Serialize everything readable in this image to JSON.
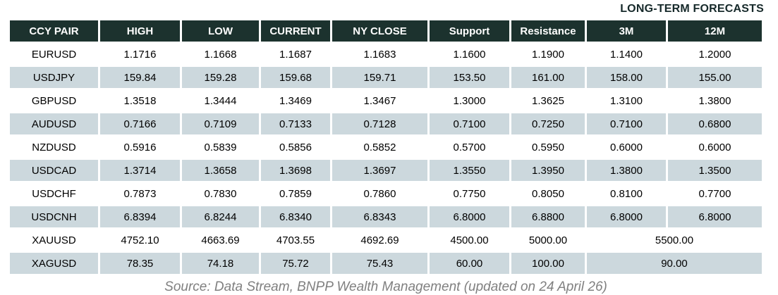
{
  "title": "LONG-TERM FORECASTS",
  "footer": "Source: Data Stream, BNPP Wealth Management (updated on 24 April 26)",
  "colors": {
    "header_bg": "#1c322e",
    "stripe_bg": "#ccd8dd",
    "title_text": "#16292a",
    "footer_text": "#808080"
  },
  "chart_data": {
    "type": "table",
    "title": "LONG-TERM FORECASTS",
    "columns": [
      "CCY PAIR",
      "HIGH",
      "LOW",
      "CURRENT",
      "NY CLOSE",
      "Support",
      "Resistance",
      "3M",
      "12M"
    ],
    "rows": [
      {
        "cells": [
          "EURUSD",
          "1.1716",
          "1.1668",
          "1.1687",
          "1.1683",
          "1.1600",
          "1.1900",
          "1.1400",
          "1.2000"
        ]
      },
      {
        "cells": [
          "USDJPY",
          "159.84",
          "159.28",
          "159.68",
          "159.71",
          "153.50",
          "161.00",
          "158.00",
          "155.00"
        ]
      },
      {
        "cells": [
          "GBPUSD",
          "1.3518",
          "1.3444",
          "1.3469",
          "1.3467",
          "1.3000",
          "1.3625",
          "1.3100",
          "1.3800"
        ]
      },
      {
        "cells": [
          "AUDUSD",
          "0.7166",
          "0.7109",
          "0.7133",
          "0.7128",
          "0.7100",
          "0.7250",
          "0.7100",
          "0.6800"
        ]
      },
      {
        "cells": [
          "NZDUSD",
          "0.5916",
          "0.5839",
          "0.5856",
          "0.5852",
          "0.5700",
          "0.5950",
          "0.6000",
          "0.6000"
        ]
      },
      {
        "cells": [
          "USDCAD",
          "1.3714",
          "1.3658",
          "1.3698",
          "1.3697",
          "1.3550",
          "1.3950",
          "1.3800",
          "1.3500"
        ]
      },
      {
        "cells": [
          "USDCHF",
          "0.7873",
          "0.7830",
          "0.7859",
          "0.7860",
          "0.7750",
          "0.8050",
          "0.8100",
          "0.7700"
        ]
      },
      {
        "cells": [
          "USDCNH",
          "6.8394",
          "6.8244",
          "6.8340",
          "6.8343",
          "6.8000",
          "6.8800",
          "6.8000",
          "6.8000"
        ]
      },
      {
        "cells": [
          "XAUUSD",
          "4752.10",
          "4663.69",
          "4703.55",
          "4692.69",
          "4500.00",
          "5000.00"
        ],
        "merged_forecast": "5500.00"
      },
      {
        "cells": [
          "XAGUSD",
          "78.35",
          "74.18",
          "75.72",
          "75.43",
          "60.00",
          "100.00"
        ],
        "merged_forecast": "90.00"
      }
    ],
    "layout": {
      "stripe_pattern": "alternate-from-second-row",
      "merged_cells": "3M+12M for XAUUSD and XAGUSD"
    }
  }
}
